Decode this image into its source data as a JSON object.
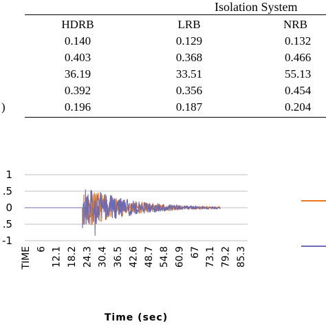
{
  "table": {
    "group_header": "Isolation System",
    "columns": [
      "HDRB",
      "LRB",
      "NRB"
    ],
    "rows": [
      [
        "0.140",
        "0.129",
        "0.132"
      ],
      [
        "0.403",
        "0.368",
        "0.466"
      ],
      [
        "36.19",
        "33.51",
        "55.13"
      ],
      [
        "0.392",
        "0.356",
        "0.454"
      ],
      [
        "0.196",
        "0.187",
        "0.204"
      ]
    ],
    "row_label_fragment": ")"
  },
  "chart_data": {
    "type": "line",
    "title": "",
    "xlabel": "Time (sec)",
    "ylabel": "",
    "ylim": [
      -1,
      1
    ],
    "yticks": [
      "1",
      "0.5",
      "0",
      "-0.5",
      "-1"
    ],
    "yticks_visible": [
      "1",
      ".5",
      "0",
      ".5",
      "-1"
    ],
    "xticks": [
      "TIME",
      "6",
      "12.1",
      "18.2",
      "24.3",
      "30.4",
      "36.5",
      "42.6",
      "48.7",
      "54.8",
      "60.9",
      "67",
      "73.1",
      "79.2",
      "85.3"
    ],
    "grid": true,
    "legend_placement": "right",
    "series": [
      {
        "color": "#e8761e",
        "peak": 0.55,
        "onset": 21.3,
        "end": 76.0
      },
      {
        "color": "#6b6bb5",
        "peak": 0.62,
        "onset": 21.3,
        "end": 76.0
      }
    ]
  }
}
